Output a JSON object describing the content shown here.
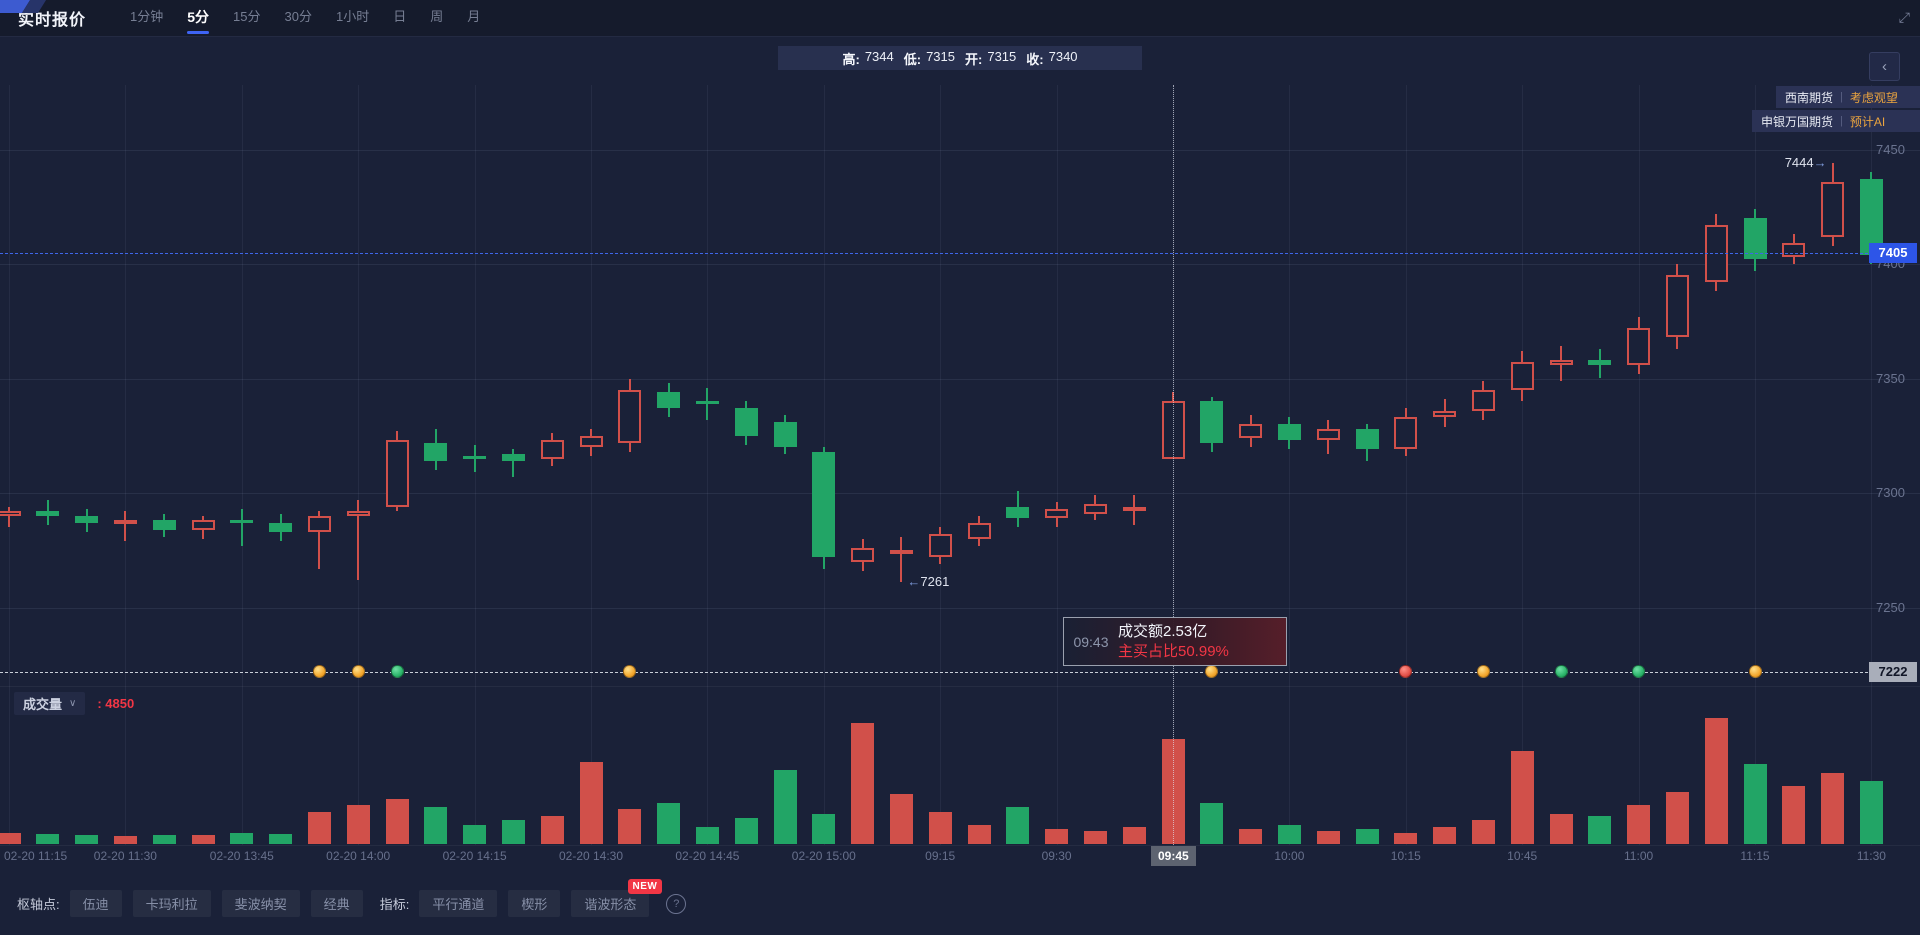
{
  "topbar": {
    "title": "实时报价",
    "tabs": [
      {
        "label": "1分钟",
        "active": false
      },
      {
        "label": "5分",
        "active": true
      },
      {
        "label": "15分",
        "active": false
      },
      {
        "label": "30分",
        "active": false
      },
      {
        "label": "1小时",
        "active": false
      },
      {
        "label": "日",
        "active": false
      },
      {
        "label": "周",
        "active": false
      },
      {
        "label": "月",
        "active": false
      }
    ],
    "fullscreen_icon": "⤢"
  },
  "ohlc_bar": {
    "items": [
      {
        "label": "高:",
        "value": "7344"
      },
      {
        "label": "低:",
        "value": "7315"
      },
      {
        "label": "开:",
        "value": "7315"
      },
      {
        "label": "收:",
        "value": "7340"
      }
    ]
  },
  "collapse_icon": "‹",
  "broker_tags": [
    {
      "name": "西南期货",
      "divider": "|",
      "comment": "考虑观望"
    },
    {
      "name": "申银万国期货",
      "divider": "|",
      "comment": "预计AI"
    }
  ],
  "tooltip": {
    "time": "09:43",
    "line1": "成交额2.53亿",
    "line2": "主买占比50.99%"
  },
  "volume_header": {
    "label": "成交量",
    "chevron": "∨",
    "value_text": ": 4850"
  },
  "bottom_toolbar": {
    "pivot_label": "枢轴点:",
    "pivot_buttons": [
      "伍迪",
      "卡玛利拉",
      "斐波纳契",
      "经典"
    ],
    "indicator_label": "指标:",
    "indicator_buttons": [
      "平行通道",
      "楔形",
      "谐波形态"
    ],
    "new_badge": "NEW",
    "help_icon": "?"
  },
  "colors": {
    "up": "#d1504a",
    "down": "#22a566",
    "accent_blue": "#2d55e8",
    "alert_red": "#f23645",
    "orange": "#eba43f",
    "chart_bg": "#1a2138"
  },
  "chart_data": {
    "type": "candlestick",
    "panes": [
      "price",
      "volume"
    ],
    "up_style": {
      "color": "#d1504a",
      "fill": "hollow",
      "meaning": "up/涨"
    },
    "down_style": {
      "color": "#22a566",
      "fill": "solid",
      "meaning": "down/跌"
    },
    "y_axis": {
      "ticks": [
        7450,
        7400,
        7350,
        7300,
        7250
      ],
      "last_price": 7405,
      "crosshair_price": 7222
    },
    "x_axis": {
      "labels": [
        "02-20 11:15",
        "02-20 11:30",
        "02-20 13:45",
        "02-20 14:00",
        "02-20 14:15",
        "02-20 14:30",
        "02-20 14:45",
        "02-20 15:00",
        "09:15",
        "09:30",
        "09:45",
        "10:00",
        "10:15",
        "10:45",
        "11:00",
        "11:15",
        "11:30"
      ],
      "label_every_n_candles": 3,
      "highlight_label": "09:45",
      "highlight_label_index": 10
    },
    "crosshair_candle_index": 30,
    "hovered_candle": {
      "time": "09:43",
      "open": 7315,
      "high": 7344,
      "low": 7315,
      "close": 7340,
      "turnover": "2.53亿",
      "buy_ratio": "50.99%",
      "volume": 4850
    },
    "annotations": [
      {
        "text": "7444",
        "arrow": "→",
        "candle_index": 47,
        "anchor": "high"
      },
      {
        "text": "7261",
        "arrow": "←",
        "candle_index": 23,
        "anchor": "low"
      }
    ],
    "line_markers": [
      {
        "candle_index": 8,
        "kind": "gold"
      },
      {
        "candle_index": 9,
        "kind": "gold"
      },
      {
        "candle_index": 10,
        "kind": "green"
      },
      {
        "candle_index": 16,
        "kind": "gold"
      },
      {
        "candle_index": 31,
        "kind": "gold"
      },
      {
        "candle_index": 36,
        "kind": "red"
      },
      {
        "candle_index": 38,
        "kind": "gold"
      },
      {
        "candle_index": 40,
        "kind": "green"
      },
      {
        "candle_index": 42,
        "kind": "green"
      },
      {
        "candle_index": 45,
        "kind": "gold"
      }
    ],
    "volume_scale_max": 6000,
    "ohlcv": [
      [
        7290,
        7294,
        7285,
        7292,
        500
      ],
      [
        7292,
        7297,
        7286,
        7290,
        450
      ],
      [
        7290,
        7293,
        7283,
        7287,
        400
      ],
      [
        7287,
        7292,
        7279,
        7288,
        380
      ],
      [
        7288,
        7291,
        7281,
        7284,
        420
      ],
      [
        7284,
        7290,
        7280,
        7288,
        400
      ],
      [
        7288,
        7293,
        7277,
        7287,
        520
      ],
      [
        7287,
        7291,
        7279,
        7283,
        480
      ],
      [
        7283,
        7292,
        7267,
        7290,
        1500
      ],
      [
        7290,
        7297,
        7262,
        7292,
        1800
      ],
      [
        7294,
        7327,
        7292,
        7323,
        2100
      ],
      [
        7322,
        7328,
        7310,
        7314,
        1700
      ],
      [
        7316,
        7321,
        7309,
        7315,
        900
      ],
      [
        7317,
        7319,
        7307,
        7314,
        1100
      ],
      [
        7315,
        7326,
        7312,
        7323,
        1300
      ],
      [
        7320,
        7328,
        7316,
        7325,
        3800
      ],
      [
        7322,
        7350,
        7318,
        7345,
        1600
      ],
      [
        7344,
        7348,
        7333,
        7337,
        1900
      ],
      [
        7340,
        7346,
        7332,
        7339,
        800
      ],
      [
        7337,
        7340,
        7321,
        7325,
        1200
      ],
      [
        7331,
        7334,
        7317,
        7320,
        3400
      ],
      [
        7318,
        7320,
        7267,
        7272,
        1400
      ],
      [
        7270,
        7280,
        7266,
        7276,
        5600
      ],
      [
        7274,
        7281,
        7261,
        7275,
        2300
      ],
      [
        7272,
        7285,
        7269,
        7282,
        1500
      ],
      [
        7280,
        7290,
        7277,
        7287,
        900
      ],
      [
        7294,
        7301,
        7285,
        7289,
        1700
      ],
      [
        7289,
        7296,
        7285,
        7293,
        700
      ],
      [
        7291,
        7299,
        7288,
        7295,
        600
      ],
      [
        7293,
        7299,
        7286,
        7294,
        800
      ],
      [
        7315,
        7344,
        7315,
        7340,
        4850
      ],
      [
        7340,
        7342,
        7318,
        7322,
        1900
      ],
      [
        7324,
        7334,
        7320,
        7330,
        700
      ],
      [
        7330,
        7333,
        7319,
        7323,
        900
      ],
      [
        7323,
        7332,
        7317,
        7328,
        600
      ],
      [
        7328,
        7330,
        7314,
        7319,
        700
      ],
      [
        7319,
        7337,
        7316,
        7333,
        500
      ],
      [
        7333,
        7341,
        7329,
        7336,
        800
      ],
      [
        7336,
        7349,
        7332,
        7345,
        1100
      ],
      [
        7345,
        7362,
        7340,
        7357,
        4300
      ],
      [
        7356,
        7364,
        7349,
        7358,
        1400
      ],
      [
        7358,
        7363,
        7350,
        7356,
        1300
      ],
      [
        7356,
        7377,
        7352,
        7372,
        1800
      ],
      [
        7368,
        7400,
        7363,
        7395,
        2400
      ],
      [
        7392,
        7422,
        7388,
        7417,
        5800
      ],
      [
        7420,
        7424,
        7397,
        7402,
        3700
      ],
      [
        7403,
        7413,
        7400,
        7409,
        2700
      ],
      [
        7412,
        7444,
        7408,
        7436,
        3300
      ],
      [
        7437,
        7440,
        7400,
        7404,
        2900
      ]
    ]
  }
}
